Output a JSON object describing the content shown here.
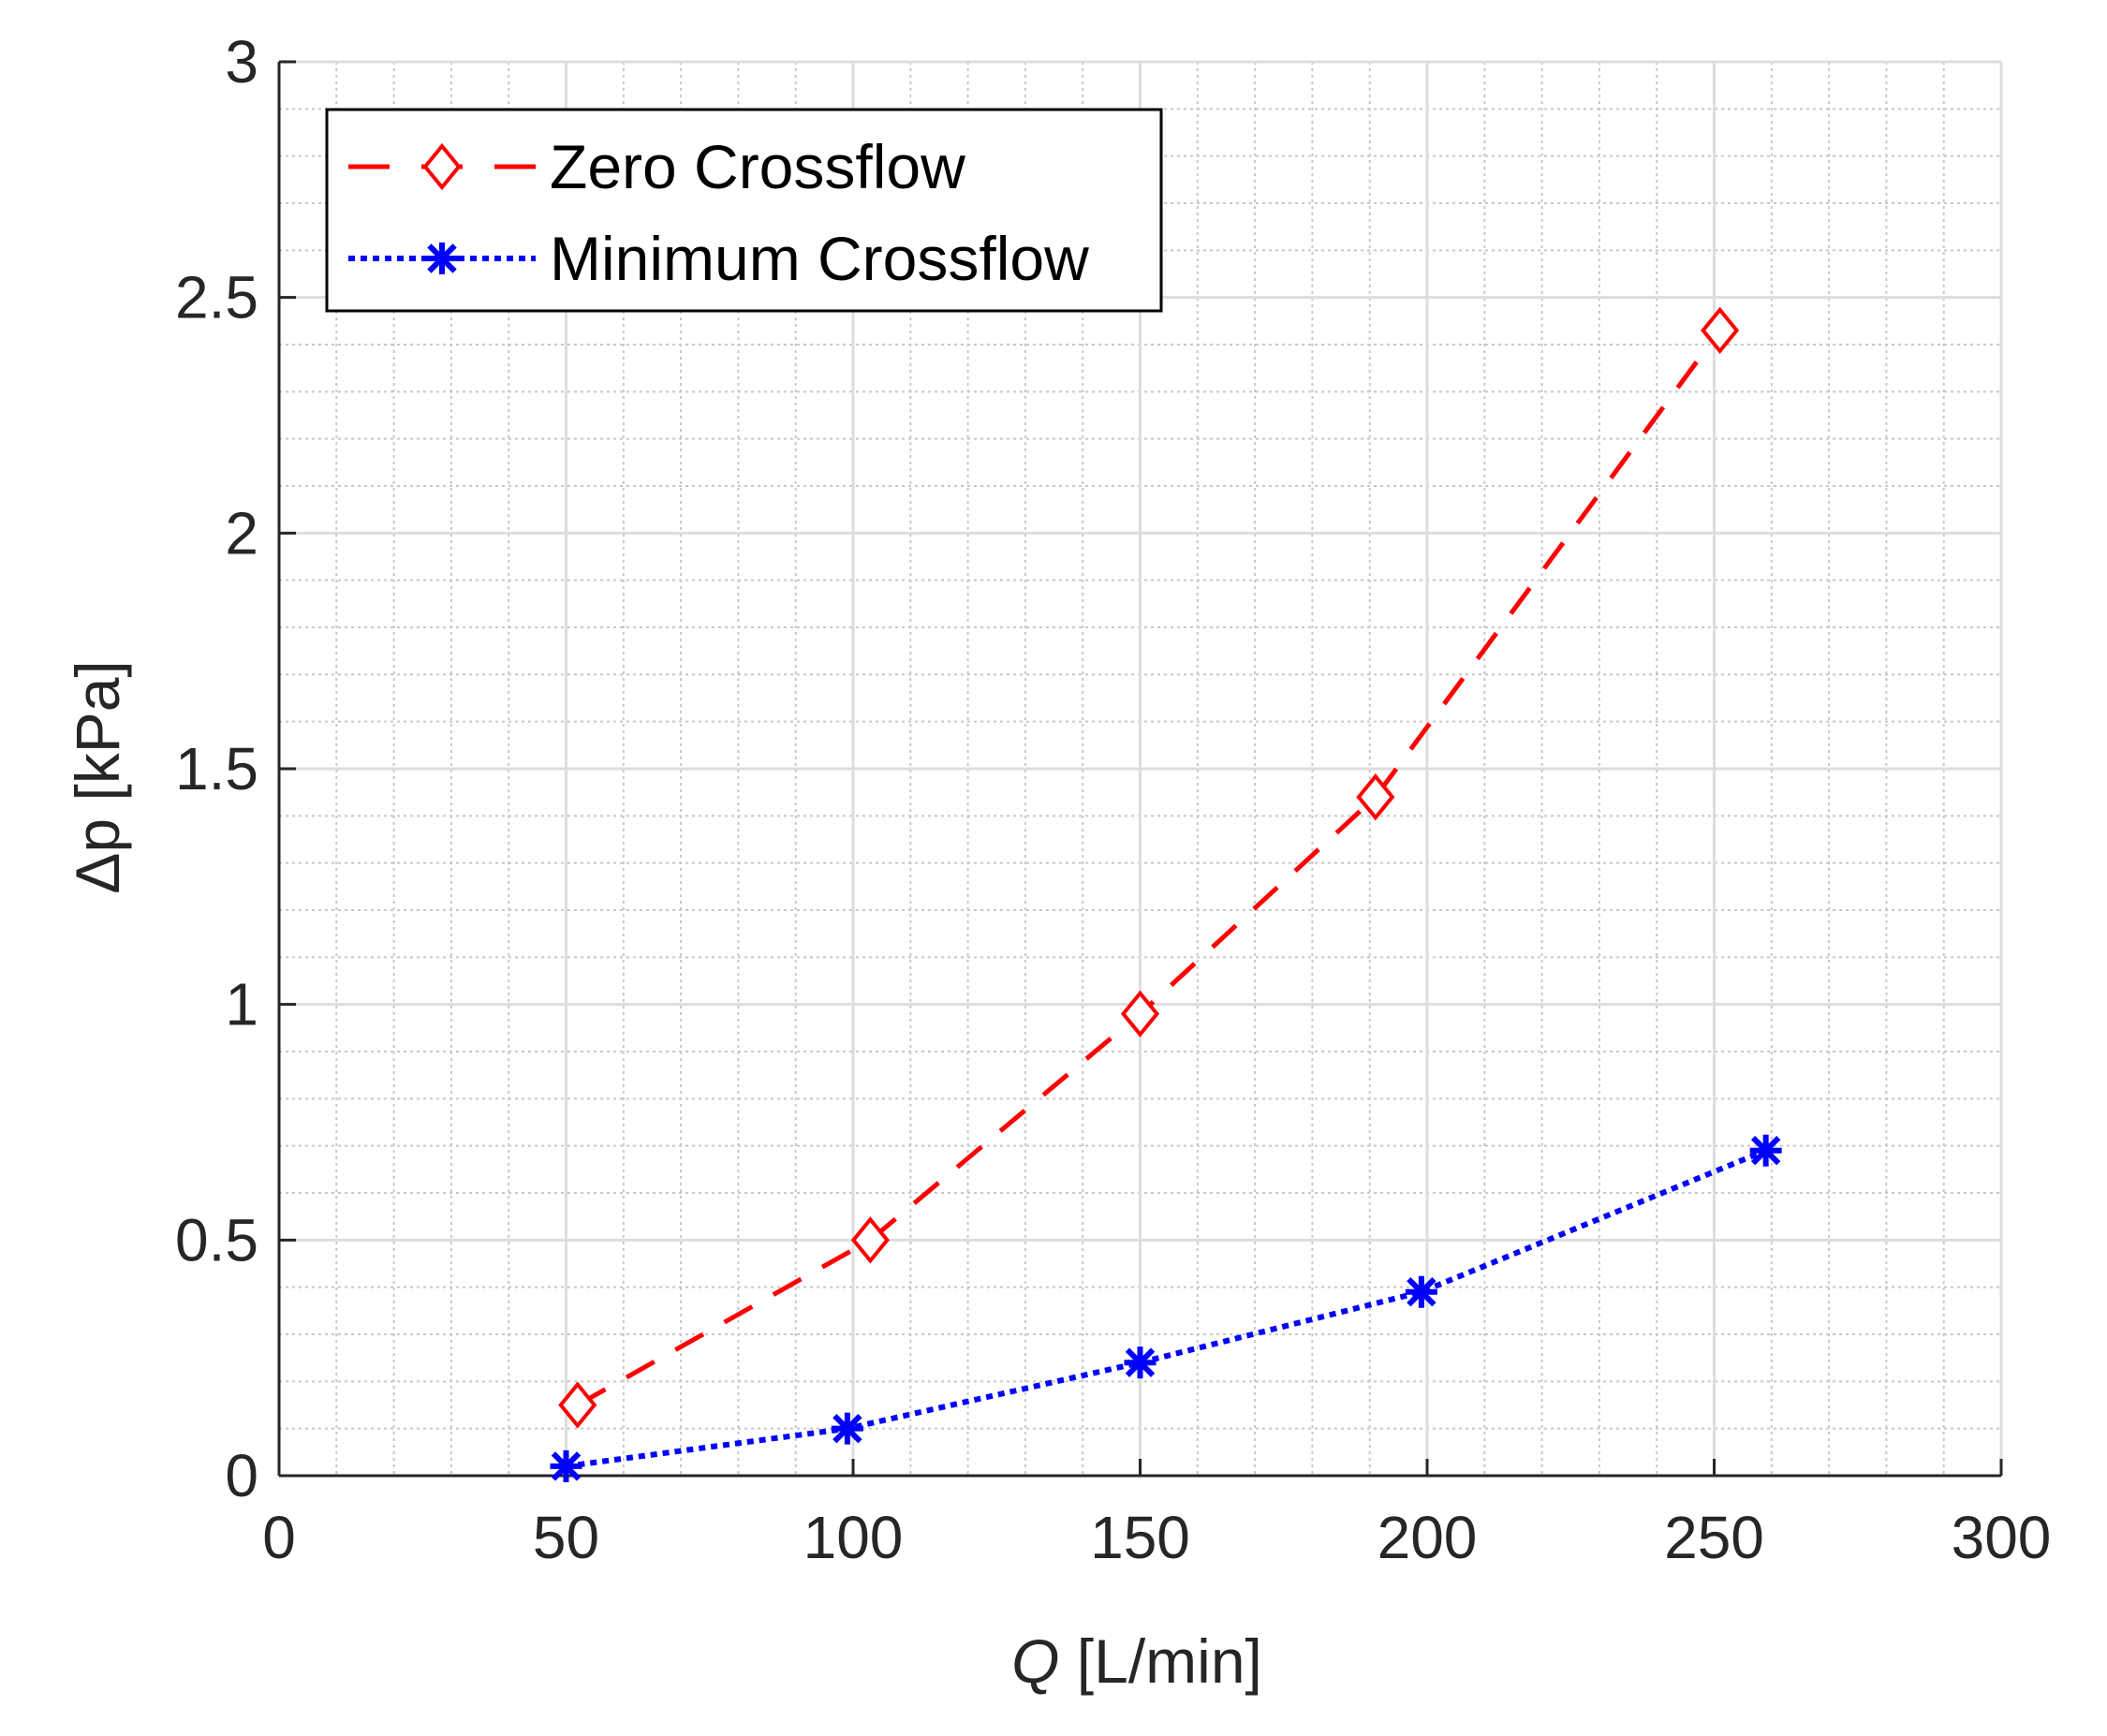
{
  "chart_data": {
    "type": "line",
    "title": "",
    "xlabel_var": "Q",
    "xlabel_unit": " [L/min]",
    "ylabel": "Δp [kPa]",
    "xlim": [
      0,
      300
    ],
    "ylim": [
      0,
      3
    ],
    "x_ticks": [
      0,
      50,
      100,
      150,
      200,
      250,
      300
    ],
    "x_tick_labels": [
      "0",
      "50",
      "100",
      "150",
      "200",
      "250",
      "300"
    ],
    "y_ticks": [
      0,
      0.5,
      1,
      1.5,
      2,
      2.5,
      3
    ],
    "y_tick_labels": [
      "0",
      "0.5",
      "1",
      "1.5",
      "2",
      "2.5",
      "3"
    ],
    "x_minor_step": 10,
    "y_minor_step": 0.1,
    "grid": true,
    "legend_position": "top-left",
    "series": [
      {
        "name": "Zero Crossflow",
        "color": "#ff0000",
        "line_style": "dashed",
        "marker": "diamond",
        "x": [
          52,
          103,
          150,
          191,
          251
        ],
        "y": [
          0.15,
          0.5,
          0.98,
          1.44,
          2.43
        ]
      },
      {
        "name": "Minimum Crossflow",
        "color": "#0000ff",
        "line_style": "dotted",
        "marker": "asterisk",
        "x": [
          50,
          99,
          150,
          199,
          259
        ],
        "y": [
          0.02,
          0.1,
          0.24,
          0.39,
          0.69
        ]
      }
    ]
  }
}
